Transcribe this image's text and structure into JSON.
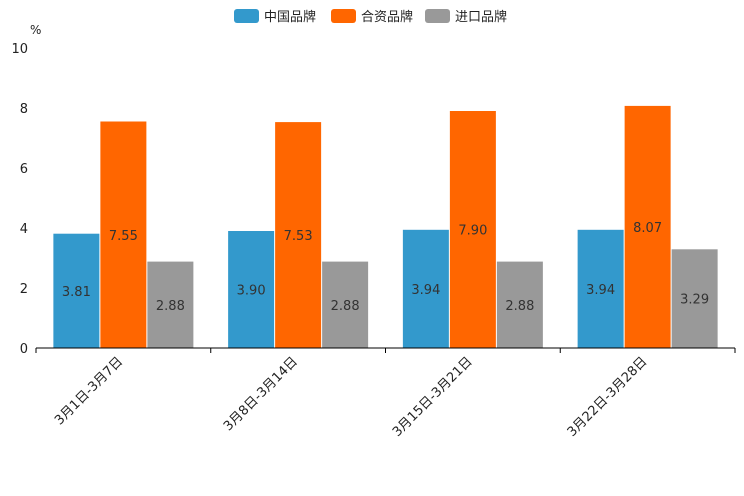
{
  "chart_data": {
    "type": "bar",
    "unit": "%",
    "ylim": [
      0,
      10
    ],
    "yticks": [
      0,
      2,
      4,
      6,
      8,
      10
    ],
    "categories": [
      "3月1日-3月7日",
      "3月8日-3月14日",
      "3月15日-3月21日",
      "3月22日-3月28日"
    ],
    "series": [
      {
        "name": "中国品牌",
        "color": "#3399cc",
        "values": [
          3.81,
          3.9,
          3.94,
          3.94
        ],
        "labels": [
          "3.81",
          "3.90",
          "3.94",
          "3.94"
        ]
      },
      {
        "name": "合资品牌",
        "color": "#ff6600",
        "values": [
          7.55,
          7.53,
          7.9,
          8.07
        ],
        "labels": [
          "7.55",
          "7.53",
          "7.90",
          "8.07"
        ]
      },
      {
        "name": "进口品牌",
        "color": "#999999",
        "values": [
          2.88,
          2.88,
          2.88,
          3.29
        ],
        "labels": [
          "2.88",
          "2.88",
          "2.88",
          "3.29"
        ]
      }
    ],
    "legend_position": "top-center",
    "grid": false
  }
}
